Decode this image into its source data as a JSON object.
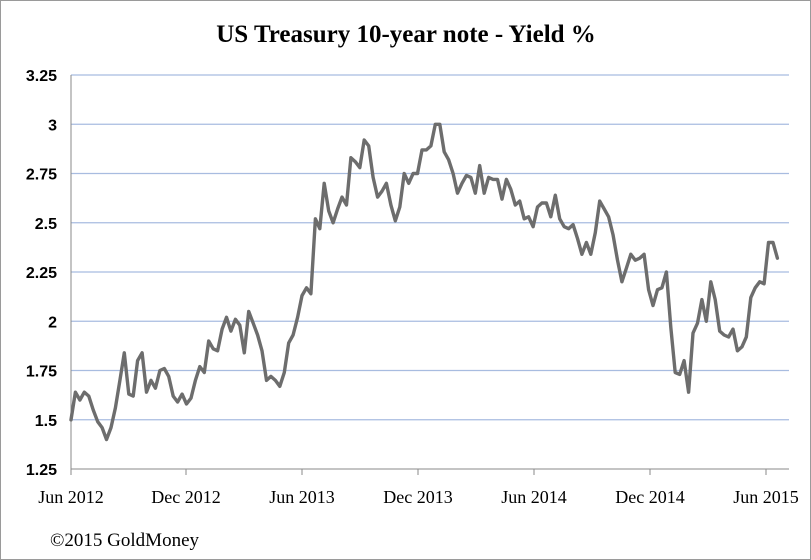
{
  "chart_data": {
    "type": "line",
    "title": "US Treasury 10-year note - Yield %",
    "xlabel": "",
    "ylabel": "",
    "ylim": [
      1.25,
      3.25
    ],
    "yticks": [
      "1.25",
      "1.5",
      "1.75",
      "2",
      "2.25",
      "2.5",
      "2.75",
      "3",
      "3.25"
    ],
    "xticks": [
      "Jun 2012",
      "Dec 2012",
      "Jun 2013",
      "Dec 2013",
      "Jun 2014",
      "Dec 2014",
      "Jun 2015"
    ],
    "grid": true,
    "legend": "none",
    "line_color": "#6d6d6d",
    "grid_color": "#a8bce0",
    "series": [
      {
        "x": [
          "2012-06-01",
          "2012-06-08",
          "2012-06-15",
          "2012-06-22",
          "2012-06-29",
          "2012-07-06",
          "2012-07-13",
          "2012-07-20",
          "2012-07-27",
          "2012-08-03",
          "2012-08-10",
          "2012-08-17",
          "2012-08-24",
          "2012-08-31",
          "2012-09-07",
          "2012-09-14",
          "2012-09-21",
          "2012-09-28",
          "2012-10-05",
          "2012-10-12",
          "2012-10-19",
          "2012-10-26",
          "2012-11-02",
          "2012-11-09",
          "2012-11-16",
          "2012-11-23",
          "2012-11-30",
          "2012-12-07",
          "2012-12-14",
          "2012-12-21",
          "2012-12-28",
          "2013-01-04",
          "2013-01-11",
          "2013-01-18",
          "2013-01-25",
          "2013-02-01",
          "2013-02-08",
          "2013-02-15",
          "2013-02-22",
          "2013-03-01",
          "2013-03-08",
          "2013-03-15",
          "2013-03-22",
          "2013-03-29",
          "2013-04-05",
          "2013-04-12",
          "2013-04-19",
          "2013-04-26",
          "2013-05-03",
          "2013-05-10",
          "2013-05-17",
          "2013-05-24",
          "2013-05-31",
          "2013-06-07",
          "2013-06-14",
          "2013-06-21",
          "2013-06-28",
          "2013-07-05",
          "2013-07-12",
          "2013-07-19",
          "2013-07-26",
          "2013-08-02",
          "2013-08-09",
          "2013-08-16",
          "2013-08-23",
          "2013-08-30",
          "2013-09-06",
          "2013-09-13",
          "2013-09-20",
          "2013-09-27",
          "2013-10-04",
          "2013-10-11",
          "2013-10-18",
          "2013-10-25",
          "2013-11-01",
          "2013-11-08",
          "2013-11-15",
          "2013-11-22",
          "2013-11-29",
          "2013-12-06",
          "2013-12-13",
          "2013-12-20",
          "2013-12-27",
          "2014-01-03",
          "2014-01-10",
          "2014-01-17",
          "2014-01-24",
          "2014-01-31",
          "2014-02-07",
          "2014-02-14",
          "2014-02-21",
          "2014-02-28",
          "2014-03-07",
          "2014-03-14",
          "2014-03-21",
          "2014-03-28",
          "2014-04-04",
          "2014-04-11",
          "2014-04-18",
          "2014-04-25",
          "2014-05-02",
          "2014-05-09",
          "2014-05-16",
          "2014-05-23",
          "2014-05-30",
          "2014-06-06",
          "2014-06-13",
          "2014-06-20",
          "2014-06-27",
          "2014-07-04",
          "2014-07-11",
          "2014-07-18",
          "2014-07-25",
          "2014-08-01",
          "2014-08-08",
          "2014-08-15",
          "2014-08-22",
          "2014-08-29",
          "2014-09-05",
          "2014-09-12",
          "2014-09-19",
          "2014-09-26",
          "2014-10-03",
          "2014-10-10",
          "2014-10-17",
          "2014-10-24",
          "2014-10-31",
          "2014-11-07",
          "2014-11-14",
          "2014-11-21",
          "2014-11-28",
          "2014-12-05",
          "2014-12-12",
          "2014-12-19",
          "2014-12-26",
          "2015-01-02",
          "2015-01-09",
          "2015-01-16",
          "2015-01-23",
          "2015-01-30",
          "2015-02-06",
          "2015-02-13",
          "2015-02-20",
          "2015-02-27",
          "2015-03-06",
          "2015-03-13",
          "2015-03-20",
          "2015-03-27",
          "2015-04-03",
          "2015-04-10",
          "2015-04-17",
          "2015-04-24",
          "2015-05-01",
          "2015-05-08",
          "2015-05-15",
          "2015-05-22",
          "2015-05-29",
          "2015-06-05",
          "2015-06-12",
          "2015-06-19"
        ],
        "values": [
          1.5,
          1.64,
          1.6,
          1.64,
          1.62,
          1.55,
          1.49,
          1.46,
          1.4,
          1.46,
          1.56,
          1.7,
          1.84,
          1.63,
          1.62,
          1.8,
          1.84,
          1.64,
          1.7,
          1.66,
          1.75,
          1.76,
          1.72,
          1.62,
          1.59,
          1.63,
          1.58,
          1.61,
          1.7,
          1.77,
          1.74,
          1.9,
          1.86,
          1.85,
          1.96,
          2.02,
          1.95,
          2.01,
          1.98,
          1.84,
          2.05,
          1.99,
          1.93,
          1.85,
          1.7,
          1.72,
          1.7,
          1.67,
          1.74,
          1.89,
          1.93,
          2.02,
          2.13,
          2.17,
          2.14,
          2.52,
          2.47,
          2.7,
          2.56,
          2.5,
          2.57,
          2.63,
          2.59,
          2.83,
          2.81,
          2.78,
          2.92,
          2.89,
          2.73,
          2.63,
          2.66,
          2.7,
          2.59,
          2.51,
          2.58,
          2.75,
          2.7,
          2.75,
          2.75,
          2.87,
          2.87,
          2.89,
          3.0,
          3.0,
          2.86,
          2.82,
          2.75,
          2.65,
          2.7,
          2.74,
          2.73,
          2.65,
          2.79,
          2.65,
          2.73,
          2.72,
          2.72,
          2.62,
          2.72,
          2.67,
          2.59,
          2.61,
          2.52,
          2.53,
          2.48,
          2.58,
          2.6,
          2.6,
          2.53,
          2.64,
          2.52,
          2.48,
          2.47,
          2.49,
          2.42,
          2.34,
          2.4,
          2.34,
          2.45,
          2.61,
          2.57,
          2.53,
          2.44,
          2.31,
          2.2,
          2.27,
          2.34,
          2.31,
          2.32,
          2.34,
          2.16,
          2.08,
          2.16,
          2.17,
          2.25,
          1.97,
          1.74,
          1.73,
          1.8,
          1.64,
          1.94,
          1.99,
          2.11,
          2.0,
          2.2,
          2.11,
          1.95,
          1.93,
          1.92,
          1.96,
          1.85,
          1.87,
          1.92,
          2.12,
          2.17,
          2.2,
          2.19,
          2.4,
          2.4,
          2.32
        ]
      }
    ]
  },
  "footer": {
    "credit": "©2015 GoldMoney"
  }
}
